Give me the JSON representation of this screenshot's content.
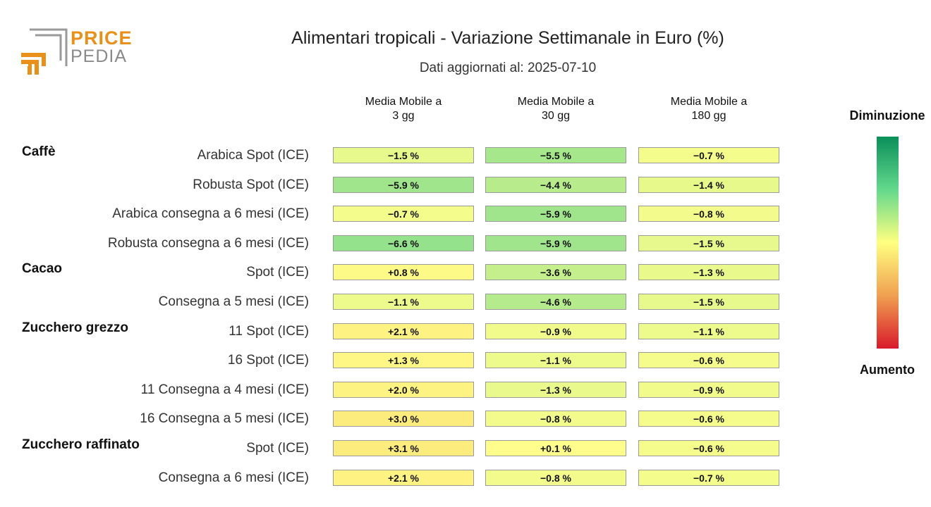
{
  "logo": {
    "line1": "PRICE",
    "line2": "PEDIA"
  },
  "title": "Alimentari tropicali - Variazione Settimanale in Euro (%)",
  "subtitle": "Dati aggiornati al: 2025-07-10",
  "legend": {
    "top_label": "Diminuzione",
    "bottom_label": "Aumento"
  },
  "colors": {
    "decrease": "#0a8f5a",
    "neutral": "#ffff80",
    "increase": "#d81a2c"
  },
  "chart_data": {
    "type": "heatmap",
    "title": "Alimentari tropicali - Variazione Settimanale in Euro (%)",
    "subtitle": "Dati aggiornati al: 2025-07-10",
    "columns": [
      "Media Mobile a\n3 gg",
      "Media Mobile a\n30 gg",
      "Media Mobile a\n180 gg"
    ],
    "unit": "%",
    "rows": [
      {
        "group": "Caffè",
        "label": "Arabica Spot (ICE)",
        "values": [
          -1.5,
          -5.5,
          -0.7
        ]
      },
      {
        "group": "",
        "label": "Robusta Spot (ICE)",
        "values": [
          -5.9,
          -4.4,
          -1.4
        ]
      },
      {
        "group": "",
        "label": "Arabica consegna a 6 mesi (ICE)",
        "values": [
          -0.7,
          -5.9,
          -0.8
        ]
      },
      {
        "group": "",
        "label": "Robusta consegna a 6 mesi (ICE)",
        "values": [
          -6.6,
          -5.9,
          -1.5
        ]
      },
      {
        "group": "Cacao",
        "label": "Spot (ICE)",
        "values": [
          0.8,
          -3.6,
          -1.3
        ]
      },
      {
        "group": "",
        "label": "Consegna a 5 mesi (ICE)",
        "values": [
          -1.1,
          -4.6,
          -1.5
        ]
      },
      {
        "group": "Zucchero grezzo",
        "label": "11 Spot (ICE)",
        "values": [
          2.1,
          -0.9,
          -1.1
        ]
      },
      {
        "group": "",
        "label": "16 Spot (ICE)",
        "values": [
          1.3,
          -1.1,
          -0.6
        ]
      },
      {
        "group": "",
        "label": "11 Consegna a 4 mesi (ICE)",
        "values": [
          2.0,
          -1.3,
          -0.9
        ]
      },
      {
        "group": "",
        "label": "16 Consegna a 5 mesi (ICE)",
        "values": [
          3.0,
          -0.8,
          -0.6
        ]
      },
      {
        "group": "Zucchero raffinato",
        "label": "Spot (ICE)",
        "values": [
          3.1,
          0.1,
          -0.6
        ]
      },
      {
        "group": "",
        "label": "Consegna a 6 mesi (ICE)",
        "values": [
          2.1,
          -0.8,
          -0.7
        ]
      }
    ]
  }
}
